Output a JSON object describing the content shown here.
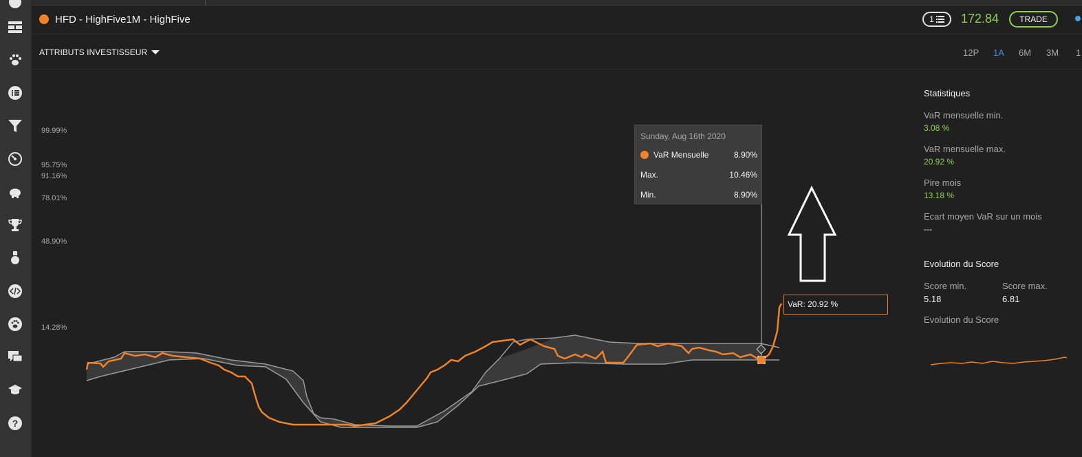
{
  "header": {
    "instrument_title": "HFD - HighFive1M - HighFive",
    "badge_count": "1",
    "price": "172.84",
    "trade_label": "TRADE",
    "accent_color": "#f0822c",
    "price_color": "#8fd14f"
  },
  "sidebar": {
    "icons": [
      "layout-icon",
      "paw-icon",
      "list-icon",
      "filter-icon",
      "speedometer-icon",
      "piggy-bank-icon",
      "trophy-icon",
      "medal-icon",
      "code-icon",
      "paw-circle-icon",
      "chat-icon",
      "graduation-cap-icon",
      "help-icon"
    ]
  },
  "subheader": {
    "attributes_label": "ATTRIBUTS INVESTISSEUR",
    "periods": [
      "12P",
      "1A",
      "6M",
      "3M",
      "1"
    ],
    "active_period": "1A"
  },
  "chart_data": {
    "type": "line",
    "y_tick_labels": [
      "99.99%",
      "95.75%",
      "91.16%",
      "78.01%",
      "48.90%",
      "14.28%"
    ],
    "series": [
      {
        "name": "VaR Mensuelle",
        "color": "#f0822c"
      },
      {
        "name": "Max.",
        "color": "#9a9a9a"
      },
      {
        "name": "Min.",
        "color": "#9a9a9a"
      }
    ],
    "tooltip": {
      "date": "Sunday, Aug 16th 2020",
      "rows": [
        {
          "label": "VaR Mensuelle",
          "value": "8.90%"
        },
        {
          "label": "Max.",
          "value": "10.46%"
        },
        {
          "label": "Min.",
          "value": "8.90%"
        }
      ]
    },
    "last_value_label": "VaR: 20.92 %"
  },
  "stats": {
    "title": "Statistiques",
    "var_min_label": "VaR mensuelle min.",
    "var_min_value": "3.08 %",
    "var_max_label": "VaR mensuelle max.",
    "var_max_value": "20.92 %",
    "worst_label": "Pire mois",
    "worst_value": "13.18 %",
    "avg_label": "Ecart moyen VaR sur un mois",
    "avg_value": "---",
    "score_title": "Evolution du Score",
    "score_min_label": "Score min.",
    "score_min_value": "5.18",
    "score_max_label": "Score max.",
    "score_max_value": "6.81",
    "score_evo_label": "Evolution du Score"
  }
}
